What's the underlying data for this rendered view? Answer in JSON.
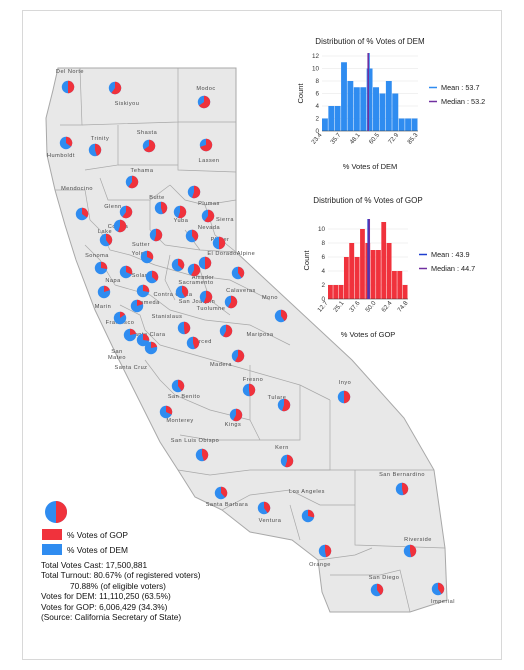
{
  "colors": {
    "gop": "#f0323c",
    "dem": "#2f8cf0",
    "land": "#e8e8e8",
    "border": "#a8a8a8",
    "mean": "#2f8cf0",
    "median": "#7030a0",
    "gop_mean_line": "#1f3fcf"
  },
  "counties": [
    {
      "name": "Del Norte",
      "pct_dem": 50
    },
    {
      "name": "Siskiyou",
      "pct_dem": 40
    },
    {
      "name": "Modoc",
      "pct_dem": 35
    },
    {
      "name": "Humboldt",
      "pct_dem": 65
    },
    {
      "name": "Trinity",
      "pct_dem": 55
    },
    {
      "name": "Shasta",
      "pct_dem": 35
    },
    {
      "name": "Lassen",
      "pct_dem": 30
    },
    {
      "name": "Tehama",
      "pct_dem": 40
    },
    {
      "name": "Plumas",
      "pct_dem": 45
    },
    {
      "name": "Butte",
      "pct_dem": 55
    },
    {
      "name": "Glenn",
      "pct_dem": 40
    },
    {
      "name": "Mendocino",
      "pct_dem": 65
    },
    {
      "name": "Yuba",
      "pct_dem": 45
    },
    {
      "name": "Sierra",
      "pct_dem": 40
    },
    {
      "name": "Nevada",
      "pct_dem": 60
    },
    {
      "name": "Colusa",
      "pct_dem": 45
    },
    {
      "name": "Lake",
      "pct_dem": 60
    },
    {
      "name": "Sutter",
      "pct_dem": 45
    },
    {
      "name": "Placer",
      "pct_dem": 50
    },
    {
      "name": "El Dorado",
      "pct_dem": 50
    },
    {
      "name": "Alpine",
      "pct_dem": 60
    },
    {
      "name": "Sonoma",
      "pct_dem": 72
    },
    {
      "name": "Yolo",
      "pct_dem": 68
    },
    {
      "name": "Sacramento",
      "pct_dem": 63
    },
    {
      "name": "Amador",
      "pct_dem": 42
    },
    {
      "name": "Napa",
      "pct_dem": 68
    },
    {
      "name": "Solano",
      "pct_dem": 64
    },
    {
      "name": "Calaveras",
      "pct_dem": 42
    },
    {
      "name": "Marin",
      "pct_dem": 80
    },
    {
      "name": "Contra Costa",
      "pct_dem": 72
    },
    {
      "name": "San Joaquin",
      "pct_dem": 58
    },
    {
      "name": "Tuolumne",
      "pct_dem": 44
    },
    {
      "name": "Mono",
      "pct_dem": 60
    },
    {
      "name": "San Francisco",
      "pct_dem": 85
    },
    {
      "name": "Alameda",
      "pct_dem": 80
    },
    {
      "name": "Stanislaus",
      "pct_dem": 52
    },
    {
      "name": "Mariposa",
      "pct_dem": 42
    },
    {
      "name": "San Mateo",
      "pct_dem": 78
    },
    {
      "name": "Santa Clara",
      "pct_dem": 73
    },
    {
      "name": "Merced",
      "pct_dem": 55
    },
    {
      "name": "Madera",
      "pct_dem": 42
    },
    {
      "name": "Santa Cruz",
      "pct_dem": 78
    },
    {
      "name": "San Benito",
      "pct_dem": 60
    },
    {
      "name": "Fresno",
      "pct_dem": 52
    },
    {
      "name": "Inyo",
      "pct_dem": 50
    },
    {
      "name": "Monterey",
      "pct_dem": 68
    },
    {
      "name": "Tulare",
      "pct_dem": 45
    },
    {
      "name": "Kings",
      "pct_dem": 42
    },
    {
      "name": "San Luis Obispo",
      "pct_dem": 55
    },
    {
      "name": "Kern",
      "pct_dem": 45
    },
    {
      "name": "San Bernardino",
      "pct_dem": 54
    },
    {
      "name": "Santa Barbara",
      "pct_dem": 62
    },
    {
      "name": "Ventura",
      "pct_dem": 60
    },
    {
      "name": "Los Angeles",
      "pct_dem": 71
    },
    {
      "name": "Orange",
      "pct_dem": 53
    },
    {
      "name": "Riverside",
      "pct_dem": 53
    },
    {
      "name": "San Diego",
      "pct_dem": 60
    },
    {
      "name": "Imperial",
      "pct_dem": 60
    }
  ],
  "chart_data": [
    {
      "type": "bar",
      "title": "Distribution of % Votes of DEM",
      "xlabel": "% Votes of DEM",
      "ylabel": "Count",
      "tick_labels": [
        "23.4",
        "35.7",
        "48.1",
        "60.5",
        "72.9",
        "85.3"
      ],
      "xlim": [
        23.4,
        85.3
      ],
      "ylim": [
        0,
        12
      ],
      "y_ticks": [
        0,
        2,
        4,
        6,
        8,
        10,
        12
      ],
      "bin_edges": [
        23.4,
        27.5,
        31.6,
        35.7,
        39.8,
        43.9,
        48.1,
        52.2,
        56.3,
        60.5,
        64.6,
        68.7,
        72.9,
        77.0,
        81.1,
        85.3
      ],
      "counts": [
        2,
        4,
        4,
        11,
        8,
        7,
        7,
        10,
        7,
        6,
        8,
        6,
        2,
        2,
        2
      ],
      "mean": 53.7,
      "median": 53.2,
      "legend": [
        "Mean : 53.7",
        "Median : 53.2"
      ]
    },
    {
      "type": "bar",
      "title": "Distribution of % Votes of GOP",
      "xlabel": "% Votes of GOP",
      "ylabel": "Count",
      "tick_labels": [
        "12.7",
        "25.1",
        "37.6",
        "50.0",
        "62.4",
        "74.8"
      ],
      "xlim": [
        12.7,
        74.8
      ],
      "ylim": [
        0,
        11
      ],
      "y_ticks": [
        0,
        2,
        4,
        6,
        8,
        10
      ],
      "bin_edges": [
        12.7,
        16.8,
        20.9,
        25.1,
        29.2,
        33.4,
        37.6,
        41.7,
        45.8,
        50.0,
        54.1,
        58.2,
        62.4,
        66.5,
        70.7,
        74.8
      ],
      "counts": [
        2,
        2,
        2,
        6,
        8,
        6,
        10,
        8,
        7,
        7,
        11,
        8,
        4,
        4,
        2
      ],
      "mean": 43.9,
      "median": 44.7,
      "legend": [
        "Mean : 43.9",
        "Median : 44.7"
      ]
    }
  ],
  "legend": {
    "gop_label": "% Votes of GOP",
    "dem_label": "% Votes of DEM"
  },
  "summary": {
    "total_votes": "Total Votes Cast: 17,500,881",
    "turnout_registered": "Total Turnout: 80.67% (of registered voters)",
    "turnout_eligible": "70.88% (of eligible voters)",
    "dem_votes": "Votes for DEM: 11,110,250 (63.5%)",
    "gop_votes": "Votes for GOP: 6,006,429 (34.3%)",
    "source": "(Source: California Secretary of State)"
  }
}
